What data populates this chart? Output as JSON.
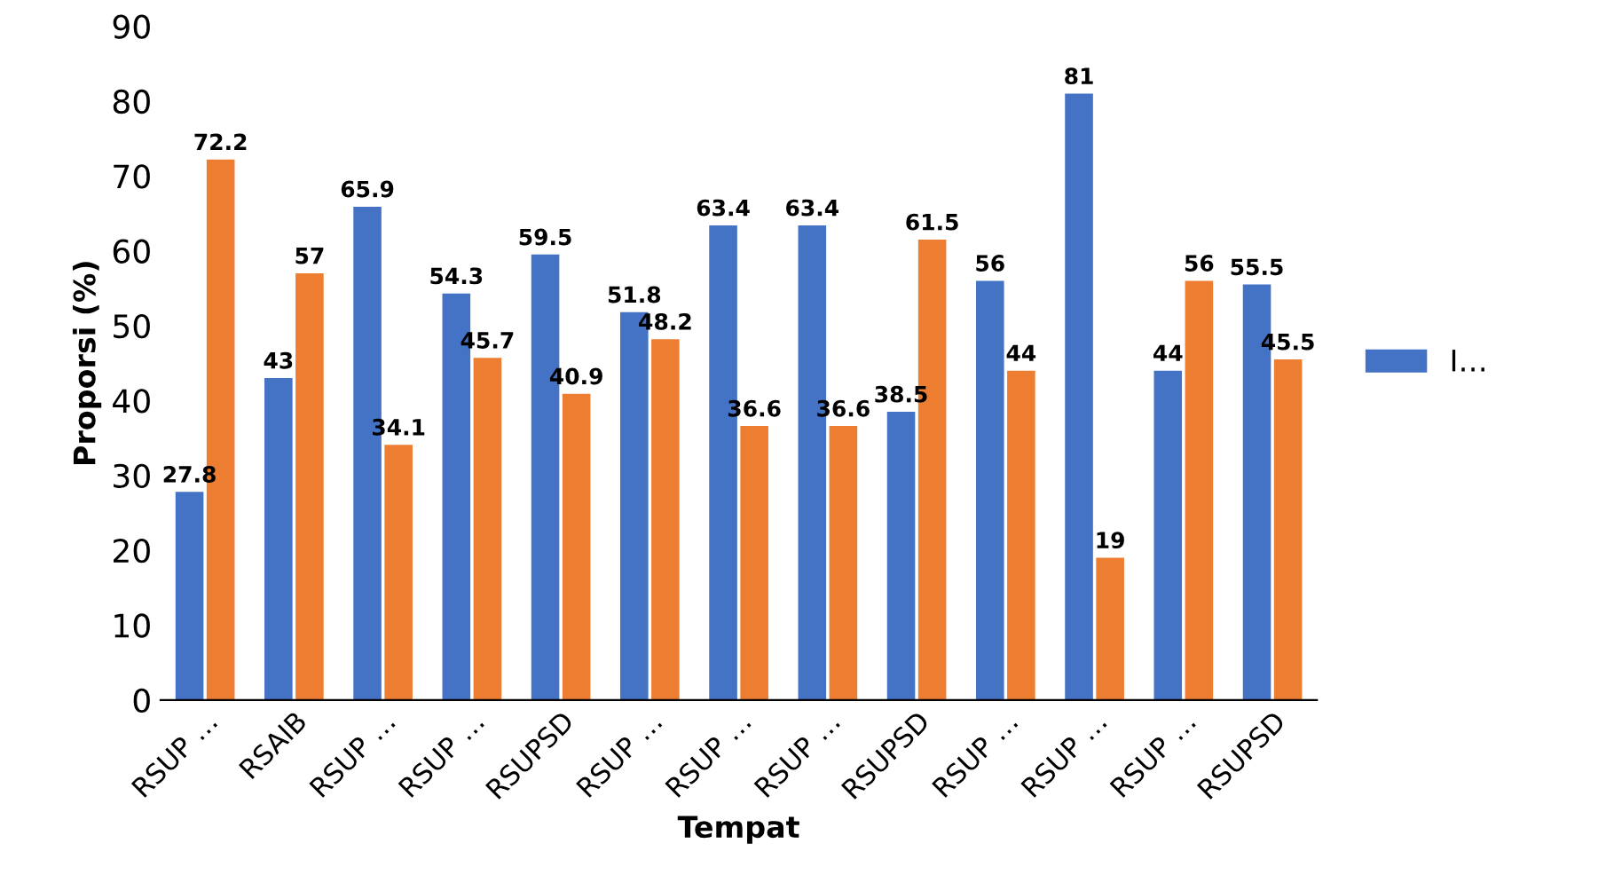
{
  "chart_data": {
    "type": "bar",
    "xlabel": "Tempat",
    "ylabel": "Proporsi (%)",
    "categories": [
      "RSUP …",
      "RSAIB",
      "RSUP …",
      "RSUP …",
      "RSUPSD",
      "RSUP …",
      "RSUP …",
      "RSUP …",
      "RSUPSD",
      "RSUP …",
      "RSUP …",
      "RSUP …",
      "RSUPSD"
    ],
    "series": [
      {
        "name": "I…",
        "color": "#4472c4",
        "values": [
          27.8,
          43,
          65.9,
          54.3,
          59.5,
          51.8,
          63.4,
          63.4,
          38.5,
          56,
          81,
          44,
          55.5
        ]
      },
      {
        "color": "#ed7d31",
        "values": [
          72.2,
          57,
          34.1,
          45.7,
          40.9,
          48.2,
          36.6,
          36.6,
          61.5,
          44,
          19,
          56,
          45.5
        ]
      }
    ],
    "ylim": [
      0,
      90
    ],
    "yticks": [
      0,
      10,
      20,
      30,
      40,
      50,
      60,
      70,
      80,
      90
    ],
    "grid": false,
    "legend": "right",
    "data_labels": true
  }
}
